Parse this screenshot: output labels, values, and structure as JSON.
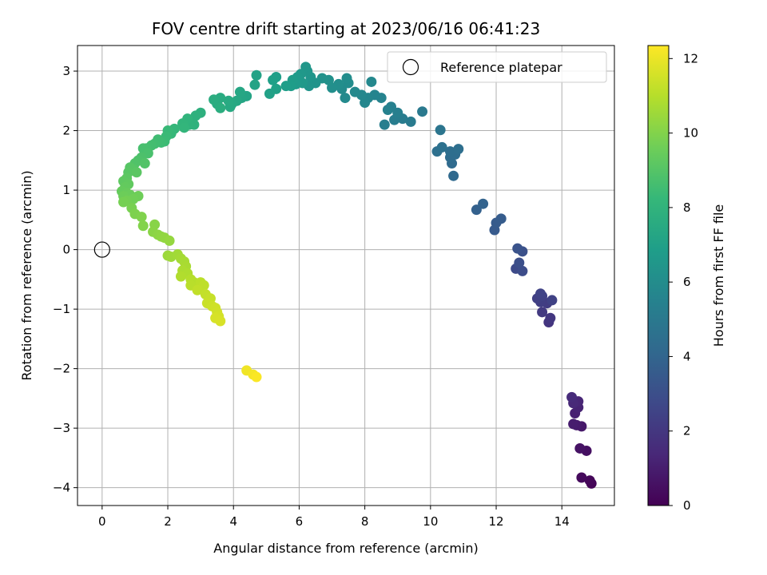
{
  "chart_data": {
    "type": "scatter",
    "title": "FOV centre drift starting at 2023/06/16 06:41:23",
    "xlabel": "Angular distance from reference (arcmin)",
    "ylabel": "Rotation from reference (arcmin)",
    "colorbar_label": "Hours from first FF file",
    "xlim": [
      -0.75,
      15.6
    ],
    "ylim": [
      -4.3,
      3.43
    ],
    "x_ticks": [
      0,
      2,
      4,
      6,
      8,
      10,
      12,
      14
    ],
    "y_ticks": [
      -4,
      -3,
      -2,
      -1,
      0,
      1,
      2,
      3
    ],
    "colorbar_range": [
      0,
      12.35
    ],
    "colorbar_ticks": [
      0,
      2,
      4,
      6,
      8,
      10,
      12
    ],
    "grid": true,
    "legend": {
      "position": "top-right",
      "entries": [
        "Reference platepar"
      ]
    },
    "reference_point": {
      "x": 0,
      "y": 0,
      "label": "Reference platepar"
    },
    "colormap": [
      "#440154",
      "#482878",
      "#3e4989",
      "#31688e",
      "#26828e",
      "#1f9e89",
      "#35b779",
      "#6ece58",
      "#b5de2b",
      "#fde725"
    ],
    "points": [
      {
        "x": 14.9,
        "y": -3.93,
        "h": 0.1
      },
      {
        "x": 14.85,
        "y": -3.88,
        "h": 0.2
      },
      {
        "x": 14.6,
        "y": -3.83,
        "h": 0.3
      },
      {
        "x": 14.75,
        "y": -3.38,
        "h": 0.5
      },
      {
        "x": 14.55,
        "y": -3.34,
        "h": 0.6
      },
      {
        "x": 14.6,
        "y": -2.97,
        "h": 0.8
      },
      {
        "x": 14.45,
        "y": -2.95,
        "h": 0.9
      },
      {
        "x": 14.35,
        "y": -2.93,
        "h": 1.0
      },
      {
        "x": 14.4,
        "y": -2.75,
        "h": 1.1
      },
      {
        "x": 14.5,
        "y": -2.65,
        "h": 1.2
      },
      {
        "x": 14.5,
        "y": -2.55,
        "h": 1.3
      },
      {
        "x": 14.35,
        "y": -2.58,
        "h": 1.4
      },
      {
        "x": 14.3,
        "y": -2.48,
        "h": 1.5
      },
      {
        "x": 13.6,
        "y": -1.22,
        "h": 1.9
      },
      {
        "x": 13.65,
        "y": -1.15,
        "h": 2.0
      },
      {
        "x": 13.4,
        "y": -1.05,
        "h": 2.1
      },
      {
        "x": 13.55,
        "y": -0.9,
        "h": 2.2
      },
      {
        "x": 13.35,
        "y": -0.88,
        "h": 2.3
      },
      {
        "x": 13.25,
        "y": -0.82,
        "h": 2.35
      },
      {
        "x": 13.4,
        "y": -0.78,
        "h": 2.4
      },
      {
        "x": 13.7,
        "y": -0.85,
        "h": 2.45
      },
      {
        "x": 13.35,
        "y": -0.74,
        "h": 2.5
      },
      {
        "x": 12.6,
        "y": -0.32,
        "h": 2.8
      },
      {
        "x": 12.8,
        "y": -0.36,
        "h": 2.9
      },
      {
        "x": 12.7,
        "y": -0.22,
        "h": 3.0
      },
      {
        "x": 12.8,
        "y": -0.03,
        "h": 3.1
      },
      {
        "x": 12.65,
        "y": 0.02,
        "h": 3.2
      },
      {
        "x": 11.95,
        "y": 0.33,
        "h": 3.5
      },
      {
        "x": 12.0,
        "y": 0.45,
        "h": 3.55
      },
      {
        "x": 12.15,
        "y": 0.52,
        "h": 3.6
      },
      {
        "x": 11.4,
        "y": 0.67,
        "h": 3.8
      },
      {
        "x": 11.6,
        "y": 0.77,
        "h": 3.9
      },
      {
        "x": 10.7,
        "y": 1.24,
        "h": 4.2
      },
      {
        "x": 10.65,
        "y": 1.45,
        "h": 4.3
      },
      {
        "x": 10.6,
        "y": 1.55,
        "h": 4.35
      },
      {
        "x": 10.75,
        "y": 1.6,
        "h": 4.4
      },
      {
        "x": 10.6,
        "y": 1.65,
        "h": 4.45
      },
      {
        "x": 10.85,
        "y": 1.69,
        "h": 4.5
      },
      {
        "x": 10.2,
        "y": 1.65,
        "h": 4.55
      },
      {
        "x": 10.35,
        "y": 1.72,
        "h": 4.6
      },
      {
        "x": 10.3,
        "y": 2.01,
        "h": 4.8
      },
      {
        "x": 9.75,
        "y": 2.32,
        "h": 5.0
      },
      {
        "x": 9.4,
        "y": 2.15,
        "h": 5.1
      },
      {
        "x": 9.15,
        "y": 2.2,
        "h": 5.15
      },
      {
        "x": 8.9,
        "y": 2.18,
        "h": 5.2
      },
      {
        "x": 8.6,
        "y": 2.1,
        "h": 5.3
      },
      {
        "x": 9.0,
        "y": 2.3,
        "h": 5.35
      },
      {
        "x": 8.8,
        "y": 2.4,
        "h": 5.4
      },
      {
        "x": 8.7,
        "y": 2.35,
        "h": 5.45
      },
      {
        "x": 8.5,
        "y": 2.55,
        "h": 5.55
      },
      {
        "x": 8.3,
        "y": 2.6,
        "h": 5.6
      },
      {
        "x": 8.1,
        "y": 2.55,
        "h": 5.65
      },
      {
        "x": 8.0,
        "y": 2.47,
        "h": 5.7
      },
      {
        "x": 7.9,
        "y": 2.6,
        "h": 5.75
      },
      {
        "x": 8.2,
        "y": 2.82,
        "h": 5.8
      },
      {
        "x": 7.7,
        "y": 2.65,
        "h": 5.85
      },
      {
        "x": 7.4,
        "y": 2.55,
        "h": 5.9
      },
      {
        "x": 7.3,
        "y": 2.7,
        "h": 5.95
      },
      {
        "x": 7.5,
        "y": 2.8,
        "h": 6.0
      },
      {
        "x": 7.45,
        "y": 2.88,
        "h": 6.05
      },
      {
        "x": 7.2,
        "y": 2.78,
        "h": 6.1
      },
      {
        "x": 7.0,
        "y": 2.72,
        "h": 6.15
      },
      {
        "x": 6.9,
        "y": 2.85,
        "h": 6.2
      },
      {
        "x": 6.7,
        "y": 2.88,
        "h": 6.25
      },
      {
        "x": 6.5,
        "y": 2.8,
        "h": 6.3
      },
      {
        "x": 6.3,
        "y": 2.75,
        "h": 6.35
      },
      {
        "x": 6.35,
        "y": 2.9,
        "h": 6.4
      },
      {
        "x": 6.25,
        "y": 3.0,
        "h": 6.45
      },
      {
        "x": 6.2,
        "y": 3.07,
        "h": 6.5
      },
      {
        "x": 6.05,
        "y": 2.95,
        "h": 6.55
      },
      {
        "x": 6.1,
        "y": 2.8,
        "h": 6.6
      },
      {
        "x": 5.95,
        "y": 2.9,
        "h": 6.65
      },
      {
        "x": 5.9,
        "y": 2.78,
        "h": 6.7
      },
      {
        "x": 5.8,
        "y": 2.85,
        "h": 6.75
      },
      {
        "x": 5.75,
        "y": 2.75,
        "h": 6.8
      },
      {
        "x": 5.6,
        "y": 2.75,
        "h": 6.85
      },
      {
        "x": 5.3,
        "y": 2.9,
        "h": 6.9
      },
      {
        "x": 5.2,
        "y": 2.85,
        "h": 6.95
      },
      {
        "x": 5.3,
        "y": 2.7,
        "h": 7.0
      },
      {
        "x": 5.1,
        "y": 2.62,
        "h": 7.05
      },
      {
        "x": 4.7,
        "y": 2.93,
        "h": 7.1
      },
      {
        "x": 4.65,
        "y": 2.77,
        "h": 7.15
      },
      {
        "x": 4.4,
        "y": 2.58,
        "h": 7.2
      },
      {
        "x": 4.25,
        "y": 2.55,
        "h": 7.25
      },
      {
        "x": 4.2,
        "y": 2.65,
        "h": 7.3
      },
      {
        "x": 4.1,
        "y": 2.5,
        "h": 7.35
      },
      {
        "x": 3.95,
        "y": 2.45,
        "h": 7.4
      },
      {
        "x": 3.9,
        "y": 2.4,
        "h": 7.45
      },
      {
        "x": 3.85,
        "y": 2.5,
        "h": 7.5
      },
      {
        "x": 3.6,
        "y": 2.55,
        "h": 7.55
      },
      {
        "x": 3.5,
        "y": 2.45,
        "h": 7.6
      },
      {
        "x": 3.4,
        "y": 2.52,
        "h": 7.65
      },
      {
        "x": 3.6,
        "y": 2.38,
        "h": 7.7
      },
      {
        "x": 3.0,
        "y": 2.3,
        "h": 7.8
      },
      {
        "x": 2.85,
        "y": 2.25,
        "h": 7.85
      },
      {
        "x": 2.8,
        "y": 2.1,
        "h": 7.9
      },
      {
        "x": 2.65,
        "y": 2.1,
        "h": 7.95
      },
      {
        "x": 2.6,
        "y": 2.2,
        "h": 8.0
      },
      {
        "x": 2.45,
        "y": 2.12,
        "h": 8.05
      },
      {
        "x": 2.5,
        "y": 2.05,
        "h": 8.1
      },
      {
        "x": 2.2,
        "y": 2.03,
        "h": 8.2
      },
      {
        "x": 2.1,
        "y": 1.95,
        "h": 8.25
      },
      {
        "x": 2.0,
        "y": 2.0,
        "h": 8.3
      },
      {
        "x": 1.95,
        "y": 1.9,
        "h": 8.35
      },
      {
        "x": 1.9,
        "y": 1.82,
        "h": 8.4
      },
      {
        "x": 1.8,
        "y": 1.8,
        "h": 8.45
      },
      {
        "x": 1.7,
        "y": 1.85,
        "h": 8.5
      },
      {
        "x": 1.6,
        "y": 1.78,
        "h": 8.55
      },
      {
        "x": 1.5,
        "y": 1.75,
        "h": 8.6
      },
      {
        "x": 1.35,
        "y": 1.7,
        "h": 8.65
      },
      {
        "x": 1.25,
        "y": 1.7,
        "h": 8.7
      },
      {
        "x": 1.4,
        "y": 1.62,
        "h": 8.75
      },
      {
        "x": 1.2,
        "y": 1.55,
        "h": 8.8
      },
      {
        "x": 1.1,
        "y": 1.5,
        "h": 8.85
      },
      {
        "x": 1.0,
        "y": 1.45,
        "h": 8.9
      },
      {
        "x": 1.3,
        "y": 1.45,
        "h": 8.95
      },
      {
        "x": 0.95,
        "y": 1.35,
        "h": 9.0
      },
      {
        "x": 0.85,
        "y": 1.38,
        "h": 9.05
      },
      {
        "x": 0.8,
        "y": 1.3,
        "h": 9.1
      },
      {
        "x": 1.05,
        "y": 1.3,
        "h": 9.15
      },
      {
        "x": 0.75,
        "y": 1.2,
        "h": 9.2
      },
      {
        "x": 0.65,
        "y": 1.15,
        "h": 9.25
      },
      {
        "x": 0.8,
        "y": 1.1,
        "h": 9.3
      },
      {
        "x": 0.7,
        "y": 1.05,
        "h": 9.35
      },
      {
        "x": 0.6,
        "y": 0.98,
        "h": 9.4
      },
      {
        "x": 0.75,
        "y": 0.95,
        "h": 9.45
      },
      {
        "x": 0.85,
        "y": 0.92,
        "h": 9.5
      },
      {
        "x": 0.65,
        "y": 0.9,
        "h": 9.55
      },
      {
        "x": 1.1,
        "y": 0.9,
        "h": 9.6
      },
      {
        "x": 0.95,
        "y": 0.85,
        "h": 9.65
      },
      {
        "x": 0.75,
        "y": 0.82,
        "h": 9.7
      },
      {
        "x": 0.65,
        "y": 0.8,
        "h": 9.75
      },
      {
        "x": 0.9,
        "y": 0.7,
        "h": 9.8
      },
      {
        "x": 1.0,
        "y": 0.6,
        "h": 9.9
      },
      {
        "x": 1.2,
        "y": 0.55,
        "h": 9.95
      },
      {
        "x": 1.25,
        "y": 0.4,
        "h": 10.0
      },
      {
        "x": 1.6,
        "y": 0.42,
        "h": 10.1
      },
      {
        "x": 1.55,
        "y": 0.3,
        "h": 10.15
      },
      {
        "x": 1.7,
        "y": 0.25,
        "h": 10.2
      },
      {
        "x": 1.8,
        "y": 0.22,
        "h": 10.25
      },
      {
        "x": 1.9,
        "y": 0.2,
        "h": 10.3
      },
      {
        "x": 2.05,
        "y": 0.15,
        "h": 10.35
      },
      {
        "x": 2.0,
        "y": -0.1,
        "h": 10.5
      },
      {
        "x": 2.1,
        "y": -0.12,
        "h": 10.55
      },
      {
        "x": 2.3,
        "y": -0.08,
        "h": 10.6
      },
      {
        "x": 2.4,
        "y": -0.15,
        "h": 10.65
      },
      {
        "x": 2.5,
        "y": -0.2,
        "h": 10.7
      },
      {
        "x": 2.55,
        "y": -0.28,
        "h": 10.75
      },
      {
        "x": 2.45,
        "y": -0.35,
        "h": 10.8
      },
      {
        "x": 2.6,
        "y": -0.4,
        "h": 10.85
      },
      {
        "x": 2.4,
        "y": -0.45,
        "h": 10.9
      },
      {
        "x": 2.7,
        "y": -0.5,
        "h": 10.95
      },
      {
        "x": 2.8,
        "y": -0.55,
        "h": 11.0
      },
      {
        "x": 2.7,
        "y": -0.6,
        "h": 11.05
      },
      {
        "x": 3.0,
        "y": -0.55,
        "h": 11.1
      },
      {
        "x": 3.1,
        "y": -0.6,
        "h": 11.15
      },
      {
        "x": 2.9,
        "y": -0.68,
        "h": 11.2
      },
      {
        "x": 3.15,
        "y": -0.75,
        "h": 11.25
      },
      {
        "x": 3.3,
        "y": -0.82,
        "h": 11.3
      },
      {
        "x": 3.2,
        "y": -0.9,
        "h": 11.35
      },
      {
        "x": 3.35,
        "y": -0.95,
        "h": 11.4
      },
      {
        "x": 3.45,
        "y": -0.98,
        "h": 11.45
      },
      {
        "x": 3.5,
        "y": -1.05,
        "h": 11.5
      },
      {
        "x": 3.55,
        "y": -1.12,
        "h": 11.55
      },
      {
        "x": 3.45,
        "y": -1.15,
        "h": 11.6
      },
      {
        "x": 3.6,
        "y": -1.2,
        "h": 11.65
      },
      {
        "x": 4.4,
        "y": -2.03,
        "h": 12.1
      },
      {
        "x": 4.6,
        "y": -2.1,
        "h": 12.2
      },
      {
        "x": 4.7,
        "y": -2.14,
        "h": 12.3
      }
    ]
  }
}
